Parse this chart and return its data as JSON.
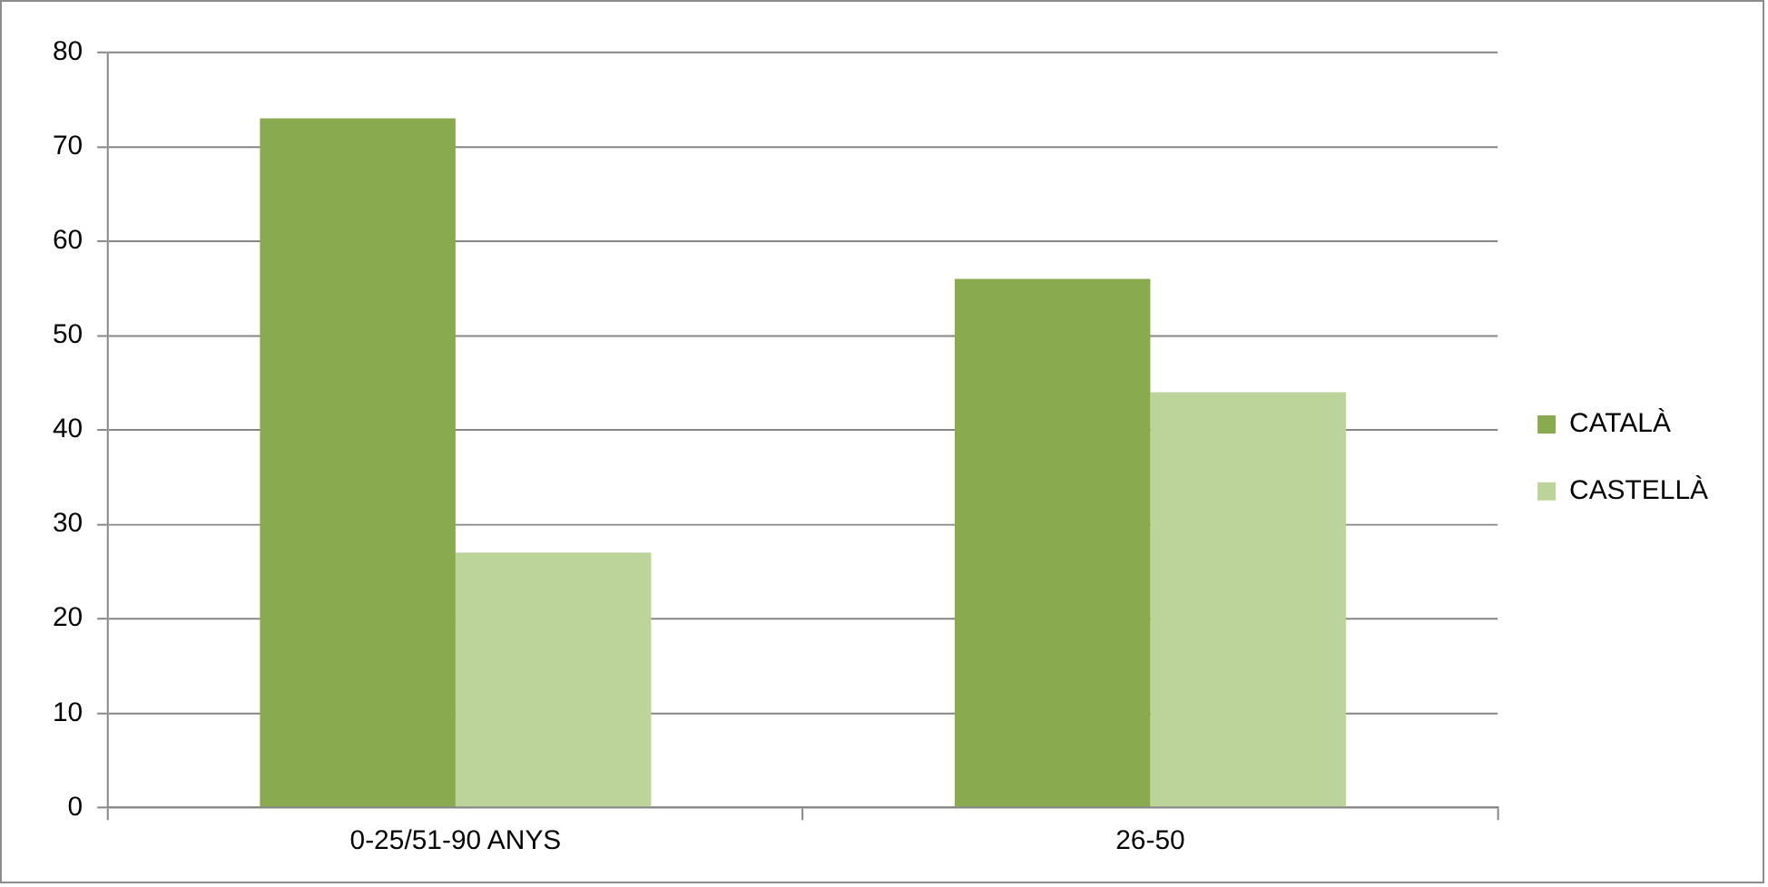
{
  "chart_data": {
    "type": "bar",
    "categories": [
      "0-25/51-90 ANYS",
      "26-50"
    ],
    "series": [
      {
        "name": "CATALÀ",
        "color": "#8aaa50",
        "values": [
          73,
          56
        ]
      },
      {
        "name": "CASTELLÀ",
        "color": "#bcd39a",
        "values": [
          27,
          44
        ]
      }
    ],
    "ylim": [
      0,
      80
    ],
    "yticks": [
      0,
      10,
      20,
      30,
      40,
      50,
      60,
      70,
      80
    ],
    "grid": "y",
    "legend": "right"
  }
}
